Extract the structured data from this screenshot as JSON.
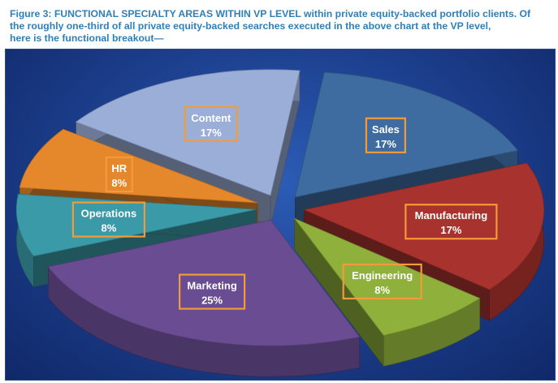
{
  "caption": {
    "line1": "Figure 3: FUNCTIONAL SPECIALTY AREAS WITHIN VP LEVEL within private equity-backed portfolio clients.  Of",
    "line2": "the roughly one-third of all private equity-backed searches executed in the above chart at the VP level,",
    "line3": "here is the functional breakout—"
  },
  "chart_data": {
    "type": "pie",
    "style": "3d-exploded",
    "slices": [
      {
        "name": "Sales",
        "value": 17,
        "label": "17%",
        "color": "#3e6ba0"
      },
      {
        "name": "Manufacturing",
        "value": 17,
        "label": "17%",
        "color": "#a8322e"
      },
      {
        "name": "Engineering",
        "value": 8,
        "label": "8%",
        "color": "#8fb03a"
      },
      {
        "name": "Marketing",
        "value": 25,
        "label": "25%",
        "color": "#6a4c93"
      },
      {
        "name": "Operations",
        "value": 8,
        "label": "8%",
        "color": "#3a9aa8"
      },
      {
        "name": "HR",
        "value": 8,
        "label": "8%",
        "color": "#e5872b"
      },
      {
        "name": "Content",
        "value": 17,
        "label": "17%",
        "color": "#9aaed8"
      }
    ]
  }
}
